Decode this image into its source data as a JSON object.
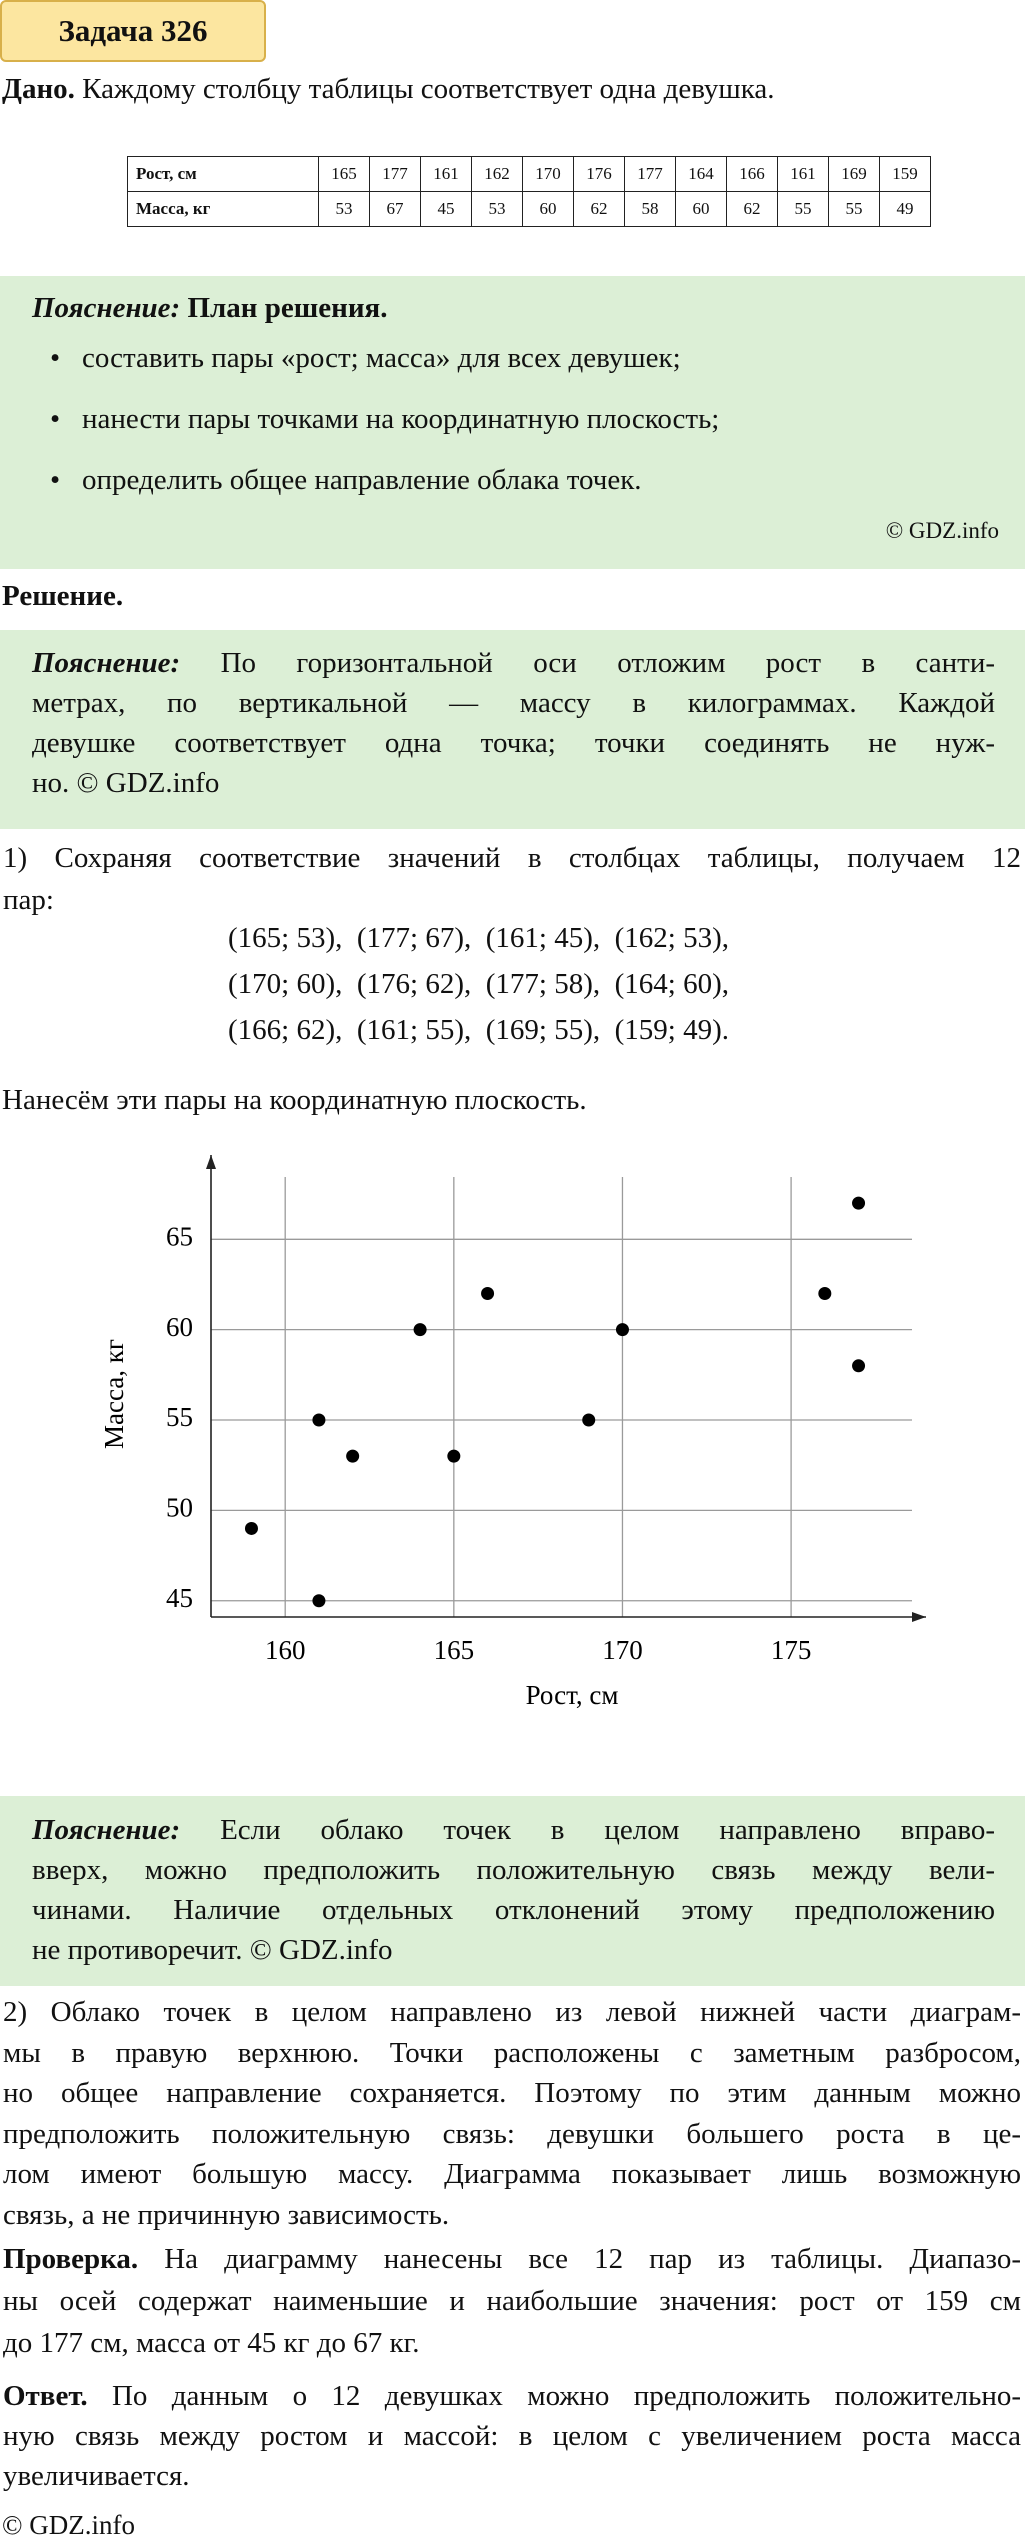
{
  "title": "Задача 326",
  "given": {
    "label": "Дано.",
    "text": "Каждому столбцу таблицы соответствует одна девушка."
  },
  "table": {
    "rows": [
      [
        "Рост, см",
        165,
        177,
        161,
        162,
        170,
        176,
        177,
        164,
        166,
        161,
        169,
        159
      ],
      [
        "Масса, кг",
        53,
        67,
        45,
        53,
        60,
        62,
        58,
        60,
        62,
        55,
        55,
        49
      ]
    ]
  },
  "hint1": {
    "label": "Пояснение:",
    "title": "План решения.",
    "items": [
      "составить пары «рост; масса» для всех девушек;",
      "нанести пары точками на координатную плоскость;",
      "определить общее направление облака точек."
    ],
    "credit": "© GDZ.info"
  },
  "solution_label": "Решение.",
  "hint2": {
    "label": "Пояснение:",
    "lines": [
      "По горизонтальной оси отложим рост в санти-",
      "метрах, по вертикальной — массу в килограммах. Каждой",
      "девушке соответствует одна точка; точки соединять не нуж-",
      "но. © GDZ.info"
    ]
  },
  "step1": {
    "lines": [
      "1) Сохраняя соответствие значений в столбцах таблицы, получаем 12",
      "пар:"
    ],
    "pairs": [
      "(165; 53),  (177; 67),  (161; 45),  (162; 53),",
      "(170; 60),  (176; 62),  (177; 58),  (164; 60),",
      "(166; 62),  (161; 55),  (169; 55),  (159; 49)."
    ]
  },
  "plot_intro": "Нанесём эти пары на координатную плоскость.",
  "chart_data": {
    "type": "scatter",
    "x": [
      165,
      177,
      161,
      162,
      170,
      176,
      177,
      164,
      166,
      161,
      169,
      159
    ],
    "values": [
      53,
      67,
      45,
      53,
      60,
      62,
      58,
      60,
      62,
      55,
      55,
      49
    ],
    "xlabel": "Рост, см",
    "ylabel": "Масса, кг",
    "xlim": [
      157.8,
      179
    ],
    "ylim": [
      44.1,
      69
    ],
    "xticks": [
      160,
      165,
      170,
      175
    ],
    "yticks": [
      45,
      50,
      55,
      60,
      65
    ],
    "grid": true,
    "color": "#000000"
  },
  "hint3": {
    "label": "Пояснение:",
    "lines": [
      "Если облако точек в целом направлено вправо-",
      "вверх, можно предположить положительную связь между вели-",
      "чинами. Наличие отдельных отклонений этому предположению",
      "не противоречит. © GDZ.info"
    ]
  },
  "step2": {
    "lines": [
      "2) Облако точек в целом направлено из левой нижней части диаграм-",
      "мы в правую верхнюю. Точки расположены с заметным разбросом,",
      "но общее направление сохраняется. Поэтому по этим данным можно",
      "предположить положительную связь: девушки большего роста в це-",
      "лом имеют большую массу. Диаграмма показывает лишь возможную",
      "связь, а не причинную зависимость."
    ]
  },
  "check": {
    "label": "Проверка.",
    "lines": [
      "На диаграмму нанесены все 12 пар из таблицы. Диапазо-",
      "ны осей содержат наименьшие и наибольшие значения: рост от 159 см",
      "до 177 см, масса от 45 кг до 67 кг."
    ]
  },
  "answer": {
    "label": "Ответ.",
    "lines": [
      "По данным о 12 девушках можно предположить положительно-",
      "ную связь между ростом и массой: в целом с увеличением роста масса",
      "увеличивается."
    ]
  },
  "credit": "© GDZ.info"
}
